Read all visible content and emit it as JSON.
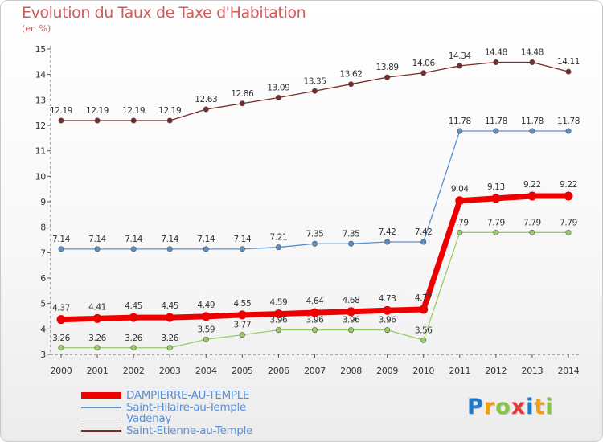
{
  "chart_data": {
    "type": "line",
    "title": "Evolution du Taux de Taxe d'Habitation",
    "unit_label": "(en %)",
    "x": [
      "2000",
      "2001",
      "2002",
      "2003",
      "2004",
      "2005",
      "2006",
      "2007",
      "2008",
      "2009",
      "2010",
      "2011",
      "2012",
      "2013",
      "2014"
    ],
    "ylim": [
      3,
      15
    ],
    "yticks": [
      "3",
      "4",
      "5",
      "6",
      "7",
      "8",
      "9",
      "10",
      "11",
      "12",
      "13",
      "14",
      "15"
    ],
    "grid": false,
    "legend_position": "bottom-left",
    "series": [
      {
        "name": "DAMPIERRE-AU-TEMPLE",
        "color": "#ee0000",
        "values": [
          4.37,
          4.41,
          4.45,
          4.45,
          4.49,
          4.55,
          4.59,
          4.64,
          4.68,
          4.73,
          4.77,
          9.04,
          9.13,
          9.22,
          9.22
        ],
        "labels": [
          "4.37",
          "4.41",
          "4.45",
          "4.45",
          "4.49",
          "4.55",
          "4.59",
          "4.64",
          "4.68",
          "4.73",
          "4.77",
          "9.04",
          "9.13",
          "9.22",
          "9.22"
        ]
      },
      {
        "name": "Saint-Hilaire-au-Temple",
        "color": "#5b8fc9",
        "values": [
          7.14,
          7.14,
          7.14,
          7.14,
          7.14,
          7.14,
          7.21,
          7.35,
          7.35,
          7.42,
          7.42,
          11.78,
          11.78,
          11.78,
          11.78
        ],
        "labels": [
          "7.14",
          "7.14",
          "7.14",
          "7.14",
          "7.14",
          "7.14",
          "7.21",
          "7.35",
          "7.35",
          "7.42",
          "7.42",
          "11.78",
          "11.78",
          "11.78",
          "11.78"
        ]
      },
      {
        "name": "Vadenay",
        "color": "#99cc66",
        "values": [
          3.26,
          3.26,
          3.26,
          3.26,
          3.59,
          3.77,
          3.96,
          3.96,
          3.96,
          3.96,
          3.56,
          7.79,
          7.79,
          7.79,
          7.79
        ],
        "labels": [
          "3.26",
          "3.26",
          "3.26",
          "3.26",
          "3.59",
          "3.77",
          "3.96",
          "3.96",
          "3.96",
          "3.96",
          "3.56",
          "7.79",
          "7.79",
          "7.79",
          "7.79"
        ]
      },
      {
        "name": "Saint-Etienne-au-Temple",
        "color": "#7a2a2a",
        "values": [
          12.19,
          12.19,
          12.19,
          12.19,
          12.63,
          12.86,
          13.09,
          13.35,
          13.62,
          13.89,
          14.06,
          14.34,
          14.48,
          14.48,
          14.11
        ],
        "labels": [
          "12.19",
          "12.19",
          "12.19",
          "12.19",
          "12.63",
          "12.86",
          "13.09",
          "13.35",
          "13.62",
          "13.89",
          "14.06",
          "14.34",
          "14.48",
          "14.48",
          "14.11"
        ]
      }
    ]
  },
  "logo": {
    "letters": [
      "P",
      "r",
      "o",
      "x",
      "i",
      "t",
      "i"
    ],
    "colors": [
      "#1f78c8",
      "#f39c12",
      "#8bc34a",
      "#e53935",
      "#1f78c8",
      "#f39c12",
      "#8bc34a"
    ]
  }
}
